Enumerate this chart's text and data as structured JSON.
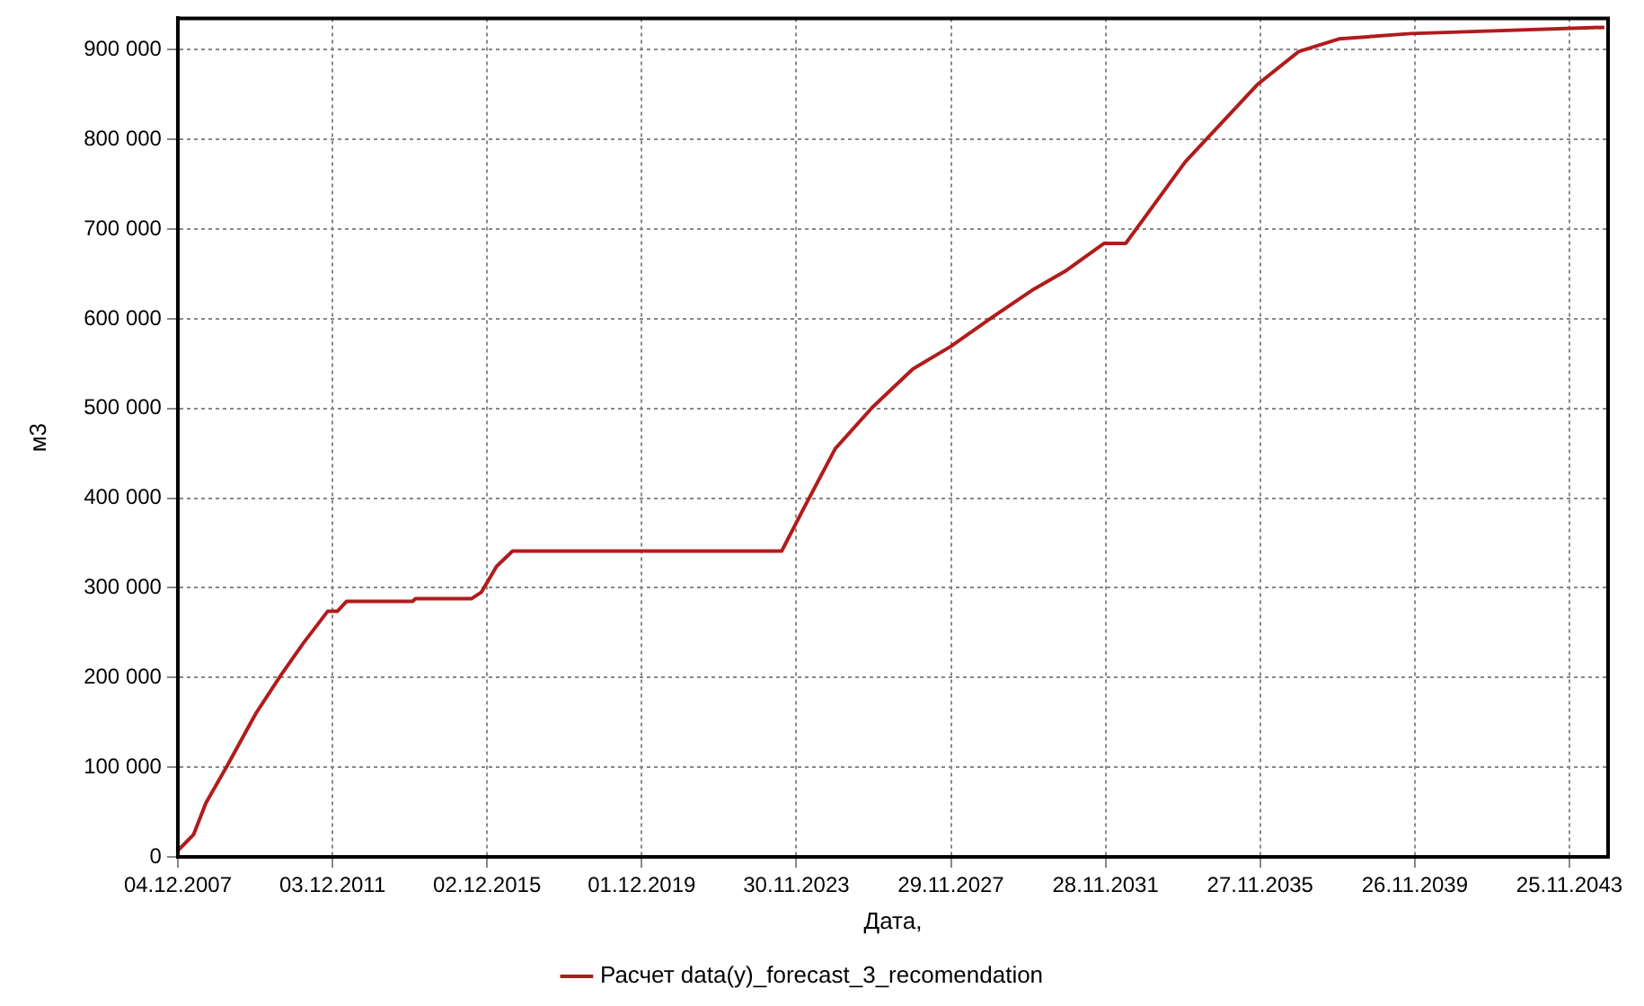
{
  "chart_data": {
    "type": "line",
    "xlabel": "Дата,",
    "ylabel": "м3",
    "legend": "bottom",
    "grid": true,
    "marker": "none",
    "line_style": "solid",
    "x": [
      "2007-12-04",
      "2008-05-01",
      "2008-08-25",
      "2009-03-20",
      "2009-12-10",
      "2010-08-05",
      "2011-03-01",
      "2011-10-20",
      "2012-01-20",
      "2012-04-15",
      "2013-12-28",
      "2014-01-25",
      "2015-07-10",
      "2015-10-08",
      "2016-03-01",
      "2016-07-30",
      "2023-07-15",
      "2024-02-05",
      "2024-12-01",
      "2025-11-15",
      "2026-12-05",
      "2027-11-25",
      "2028-12-15",
      "2030-01-20",
      "2030-11-25",
      "2031-11-12",
      "2032-06-05",
      "2033-12-20",
      "2035-10-30",
      "2036-11-25",
      "2037-12-10",
      "2039-10-20",
      "2044-10-20"
    ],
    "series": [
      {
        "name": "Расчет data(y)_forecast_3_recomendation",
        "color": "#b01c1c",
        "values": [
          7000,
          25000,
          60000,
          103000,
          160000,
          203000,
          238000,
          274000,
          274000,
          285000,
          285000,
          288000,
          288000,
          295000,
          324000,
          341000,
          341000,
          388000,
          455000,
          501000,
          544000,
          569000,
          601000,
          633000,
          654000,
          684000,
          684000,
          775000,
          861000,
          898000,
          912000,
          918000,
          925000
        ]
      }
    ],
    "xlim": [
      "2007-12-04",
      "2044-11-24"
    ],
    "xticks": [
      {
        "value": "2007-12-04",
        "label": "04.12.2007"
      },
      {
        "value": "2011-12-03",
        "label": "03.12.2011"
      },
      {
        "value": "2015-12-02",
        "label": "02.12.2015"
      },
      {
        "value": "2019-12-01",
        "label": "01.12.2019"
      },
      {
        "value": "2023-11-30",
        "label": "30.11.2023"
      },
      {
        "value": "2027-11-29",
        "label": "29.11.2027"
      },
      {
        "value": "2031-11-28",
        "label": "28.11.2031"
      },
      {
        "value": "2035-11-27",
        "label": "27.11.2035"
      },
      {
        "value": "2039-11-26",
        "label": "26.11.2039"
      },
      {
        "value": "2043-11-25",
        "label": "25.11.2043"
      }
    ],
    "ylim": [
      0,
      935000
    ],
    "yticks": [
      0,
      {
        "value": 100000,
        "label": "100 000"
      },
      {
        "value": 200000,
        "label": "200 000"
      },
      {
        "value": 300000,
        "label": "300 000"
      },
      {
        "value": 400000,
        "label": "400 000"
      },
      {
        "value": 500000,
        "label": "500 000"
      },
      {
        "value": 600000,
        "label": "600 000"
      },
      {
        "value": 700000,
        "label": "700 000"
      },
      {
        "value": 800000,
        "label": "800 000"
      },
      {
        "value": 900000,
        "label": "900 000"
      }
    ]
  }
}
